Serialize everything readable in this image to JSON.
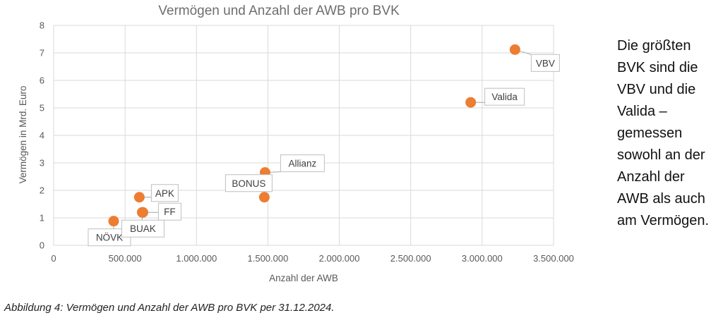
{
  "chart_data": {
    "type": "scatter",
    "title": "Vermögen und Anzahl der AWB pro BVK",
    "xlabel": "Anzahl der AWB",
    "ylabel": "Vermögen in Mrd. Euro",
    "xlim": [
      0,
      3500000
    ],
    "ylim": [
      0,
      8
    ],
    "x_ticks": [
      "0",
      "500.000",
      "1.000.000",
      "1.500.000",
      "2.000.000",
      "2.500.000",
      "3.000.000",
      "3.500.000"
    ],
    "y_ticks": [
      "0",
      "1",
      "2",
      "3",
      "4",
      "5",
      "6",
      "7",
      "8"
    ],
    "grid": true,
    "marker_color": "#ED7D31",
    "points": [
      {
        "label": "NÖVK",
        "x": 420000,
        "y": 0.88
      },
      {
        "label": "BUAK",
        "x": 620000,
        "y": 1.2
      },
      {
        "label": "APK",
        "x": 600000,
        "y": 1.75
      },
      {
        "label": "FF",
        "x": 625000,
        "y": 1.2
      },
      {
        "label": "BONUS",
        "x": 1475000,
        "y": 1.75
      },
      {
        "label": "Allianz",
        "x": 1480000,
        "y": 2.65
      },
      {
        "label": "Valida",
        "x": 2920000,
        "y": 5.2
      },
      {
        "label": "VBV",
        "x": 3230000,
        "y": 7.12
      }
    ]
  },
  "side_text": "Die größten\nBVK sind die\nVBV und die\nValida –\ngemessen\nsowohl an der\nAnzahl der\nAWB als auch\nam Vermögen.",
  "caption": "Abbildung 4: Vermögen und Anzahl der AWB pro BVK per 31.12.2024."
}
